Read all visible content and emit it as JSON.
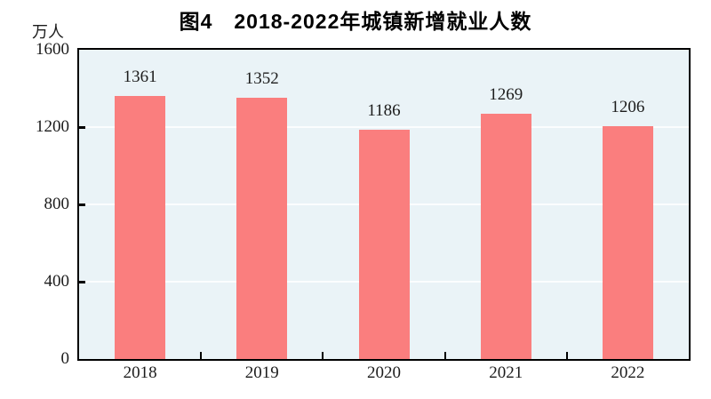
{
  "title": "图4　2018-2022年城镇新增就业人数",
  "chart_data": {
    "type": "bar",
    "title": "图4　2018-2022年城镇新增就业人数",
    "categories": [
      "2018",
      "2019",
      "2020",
      "2021",
      "2022"
    ],
    "values": [
      1361,
      1352,
      1186,
      1269,
      1206
    ],
    "value_labels": [
      "1361",
      "1352",
      "1186",
      "1269",
      "1206"
    ],
    "xlabel": "",
    "ylabel": "万人",
    "ylim": [
      0,
      1600
    ],
    "yticks": [
      0,
      400,
      800,
      1200,
      1600
    ],
    "ytick_labels": [
      "0",
      "400",
      "800",
      "1200",
      "1600"
    ],
    "grid": "horizontal",
    "legend": "none",
    "colors": {
      "bar": "#FA7E7E",
      "plot_background": "#EAF3F7",
      "gridline": "#FBFDFE",
      "axis_frame": "#000000",
      "text": "#1c1c1c"
    }
  }
}
